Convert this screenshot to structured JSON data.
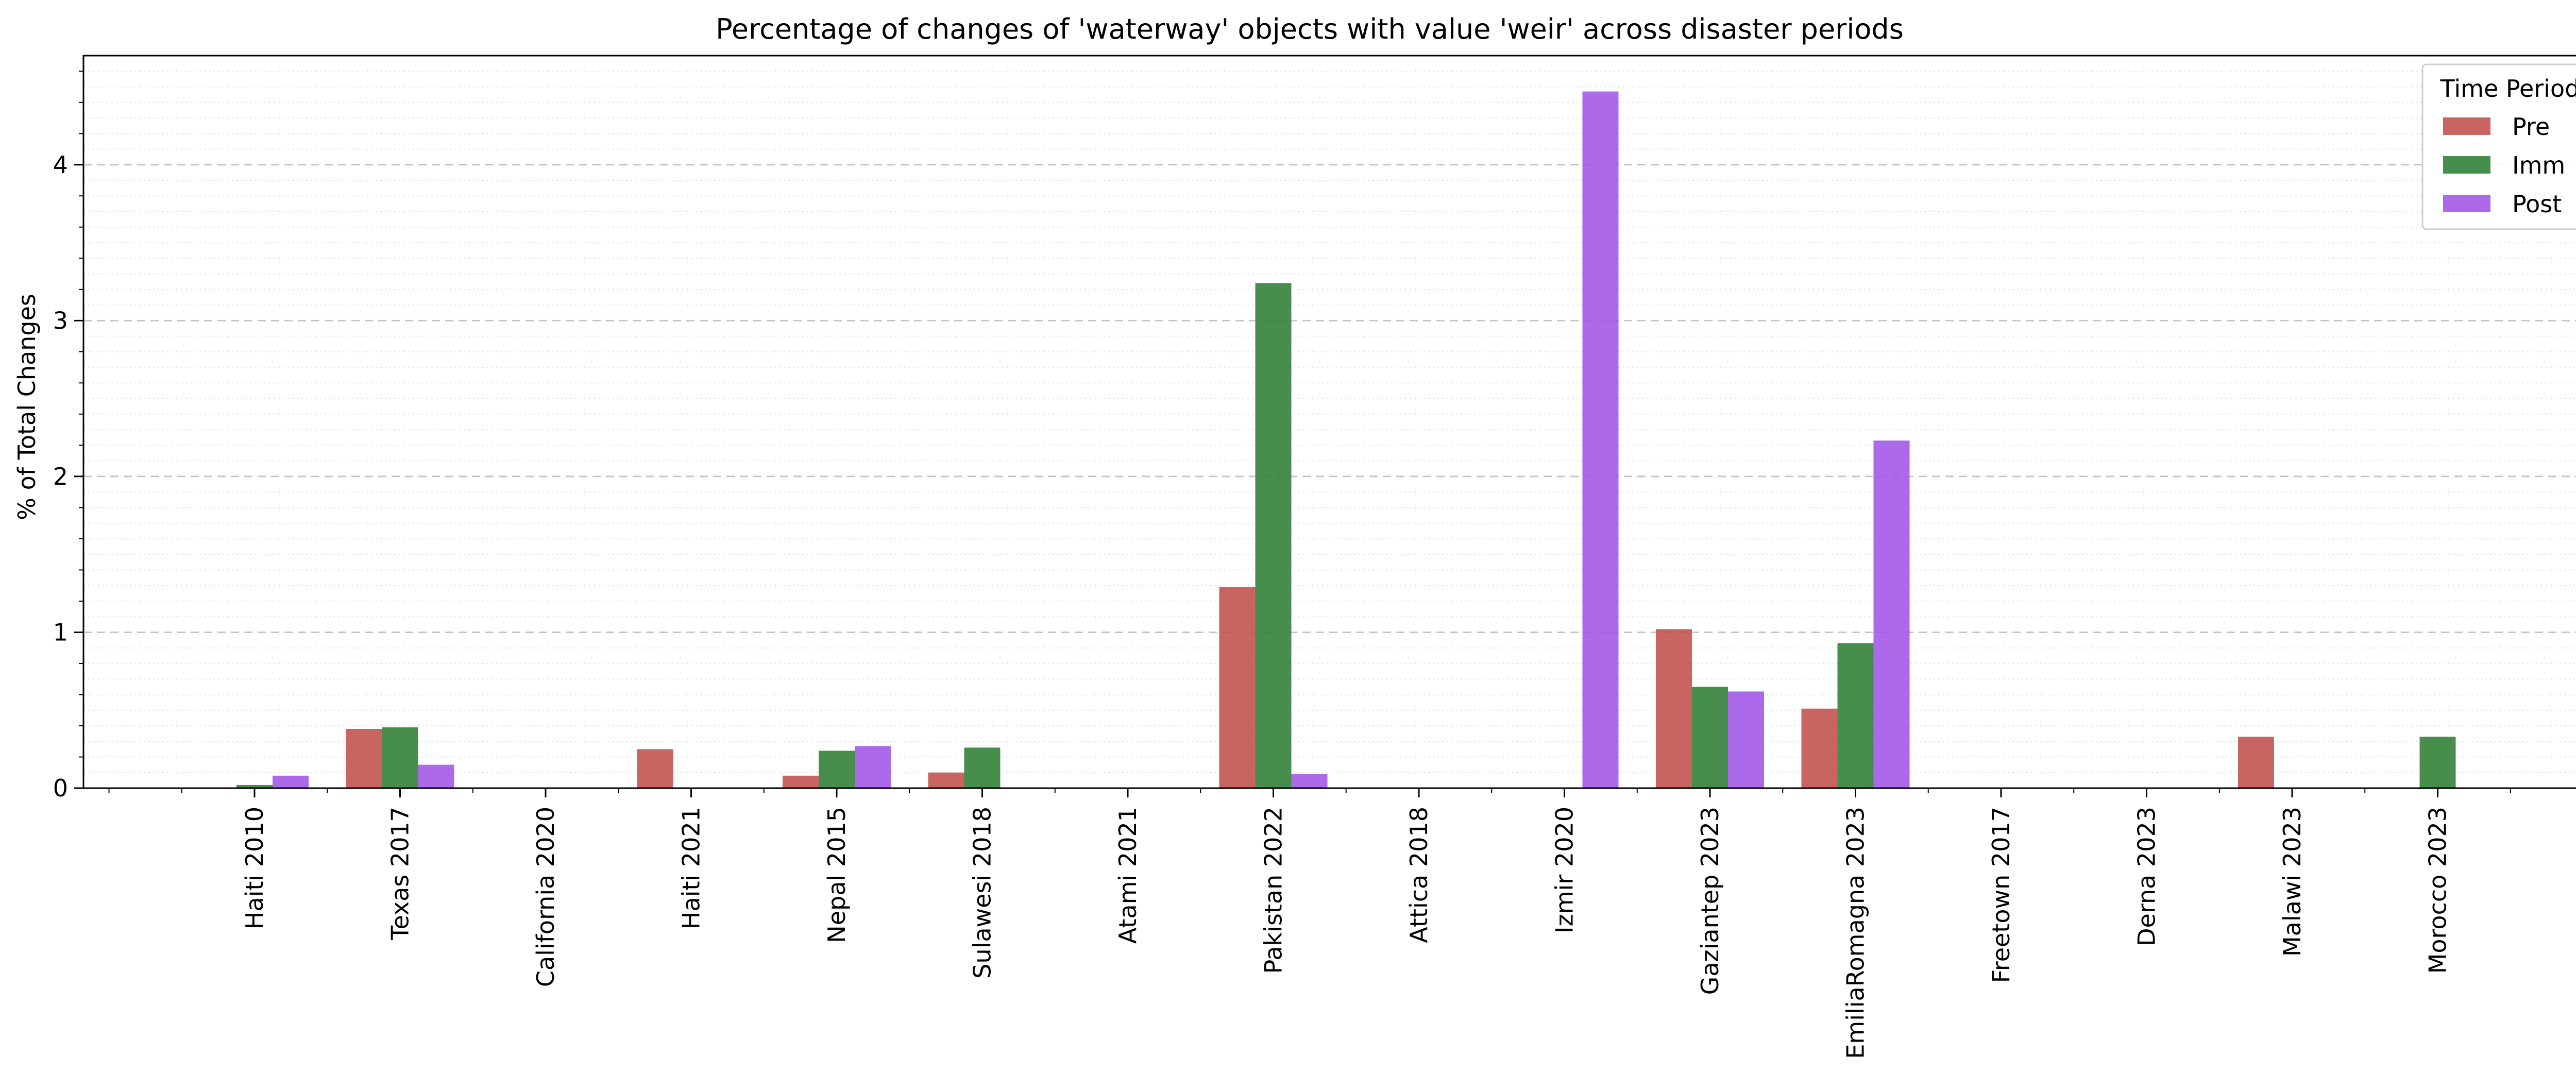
{
  "chart_data": {
    "type": "bar",
    "title": "Percentage of changes of 'waterway' objects with value 'weir' across disaster periods",
    "xlabel": "",
    "ylabel": "% of Total Changes",
    "ylim": [
      0,
      4.7
    ],
    "yticks": [
      0,
      1,
      2,
      3,
      4
    ],
    "grid": true,
    "legend": {
      "title": "Time Period",
      "placement": "top-right"
    },
    "categories": [
      "Haiti 2010",
      "Texas 2017",
      "California 2020",
      "Haiti 2021",
      "Nepal 2015",
      "Sulawesi 2018",
      "Atami 2021",
      "Pakistan 2022",
      "Attica 2018",
      "Izmir 2020",
      "Gaziantep 2023",
      "EmiliaRomagna 2023",
      "Freetown 2017",
      "Derna 2023",
      "Malawi 2023",
      "Morocco 2023"
    ],
    "series": [
      {
        "name": "Pre",
        "color": "#c0504d",
        "values": [
          0,
          0.38,
          0,
          0.25,
          0.08,
          0.1,
          0,
          1.29,
          0,
          0,
          1.02,
          0.51,
          0,
          0,
          0.33,
          0
        ]
      },
      {
        "name": "Imm",
        "color": "#2e7d32",
        "values": [
          0.02,
          0.39,
          0,
          0,
          0.24,
          0.26,
          0,
          3.24,
          0,
          0,
          0.65,
          0.93,
          0,
          0,
          0,
          0.33
        ]
      },
      {
        "name": "Post",
        "color": "#a155e8",
        "values": [
          0.08,
          0.15,
          0,
          0,
          0.27,
          0,
          0,
          0.09,
          0,
          4.47,
          0.62,
          2.23,
          0,
          0,
          0,
          0
        ]
      }
    ]
  }
}
